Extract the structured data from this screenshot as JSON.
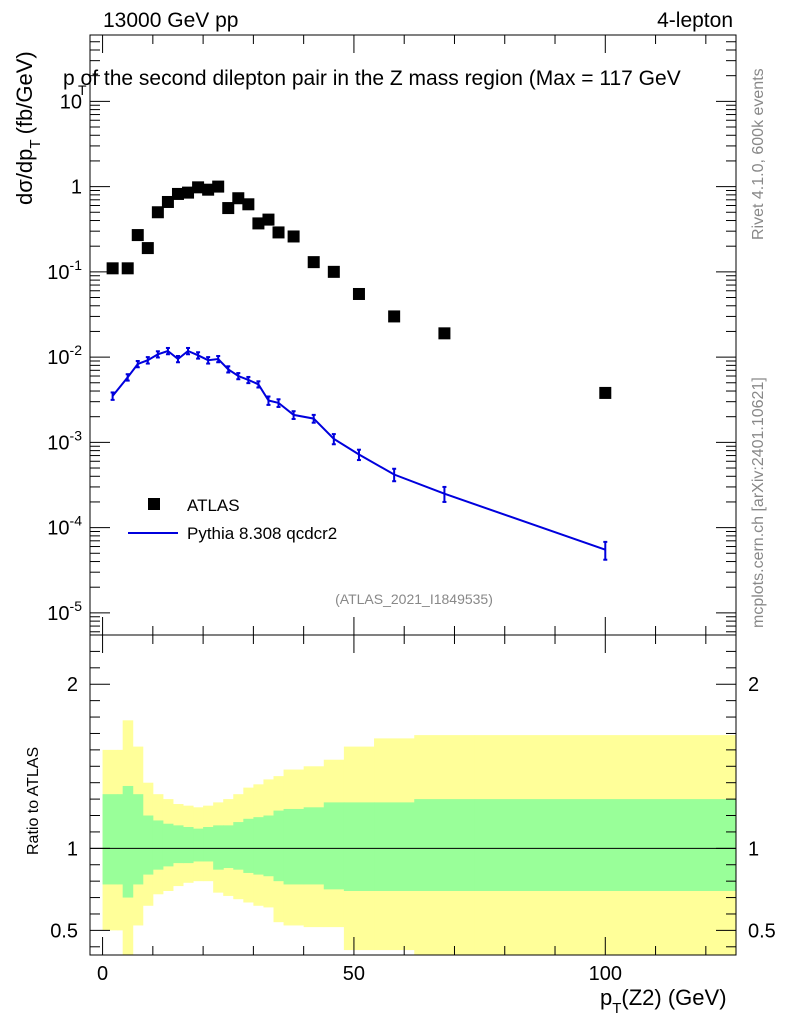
{
  "header": {
    "left": "13000 GeV pp",
    "right": "4-lepton",
    "title": "p  of the second dilepton pair in the Z mass region (Max = 117 GeV",
    "title_sub": "T"
  },
  "side_labels": {
    "rivet": "Rivet 4.1.0,  600k events",
    "mcplots": "mcplots.cern.ch [arXiv:2401.10621]"
  },
  "axes": {
    "ylabel_main": "dσ/dp",
    "ylabel_main_sub": "T",
    "ylabel_main_unit": "(fb/GeV)",
    "ylabel_ratio": "Ratio to ATLAS",
    "xlabel": "p",
    "xlabel_sub": "T",
    "xlabel_rest": "(Z2) (GeV)"
  },
  "ticks": {
    "x": [
      "0",
      "50",
      "100"
    ],
    "y_main": [
      {
        "base": "10",
        "exp": "-5"
      },
      {
        "base": "10",
        "exp": "-4"
      },
      {
        "base": "10",
        "exp": "-3"
      },
      {
        "base": "10",
        "exp": "-2"
      },
      {
        "base": "10",
        "exp": "-1"
      },
      {
        "base": "1",
        "exp": ""
      },
      {
        "base": "10",
        "exp": ""
      }
    ],
    "y_ratio": [
      "0.5",
      "1",
      "2"
    ]
  },
  "legend": {
    "data_label": "ATLAS",
    "mc_label": "Pythia 8.308 qcdcr2"
  },
  "watermark": "(ATLAS_2021_I1849535)",
  "colors": {
    "mc_line": "#0000dd",
    "band_inner": "#99ff99",
    "band_outer": "#ffff99",
    "data_marker": "#000000"
  },
  "chart_data": {
    "type": "scatter",
    "xlim": [
      -2.5,
      126
    ],
    "ylim_main": [
      5.5e-06,
      60
    ],
    "ylim_ratio": [
      0.35,
      2.3
    ],
    "x_scale": "linear",
    "y_scale": "log",
    "atlas": {
      "name": "ATLAS",
      "x": [
        2,
        5,
        7,
        9,
        11,
        13,
        15,
        17,
        19,
        21,
        23,
        25,
        27,
        29,
        31,
        33,
        35,
        38,
        42,
        46,
        51,
        58,
        68,
        100
      ],
      "y": [
        0.11,
        0.11,
        0.27,
        0.19,
        0.5,
        0.66,
        0.82,
        0.85,
        0.98,
        0.92,
        1.0,
        0.56,
        0.73,
        0.62,
        0.37,
        0.41,
        0.29,
        0.26,
        0.13,
        0.1,
        0.055,
        0.03,
        0.019,
        0.0038
      ]
    },
    "pythia": {
      "name": "Pythia 8.308 qcdcr2",
      "x": [
        2,
        5,
        7,
        9,
        11,
        13,
        15,
        17,
        19,
        21,
        23,
        25,
        27,
        29,
        31,
        33,
        35,
        38,
        42,
        46,
        51,
        58,
        68,
        100
      ],
      "y": [
        0.0035,
        0.0058,
        0.0083,
        0.0092,
        0.0108,
        0.0118,
        0.0095,
        0.0118,
        0.0105,
        0.0092,
        0.0095,
        0.0072,
        0.006,
        0.0054,
        0.0048,
        0.0031,
        0.0029,
        0.0021,
        0.0019,
        0.0011,
        0.00072,
        0.00042,
        0.00025,
        5.5e-05
      ],
      "err": [
        0.00035,
        0.0005,
        0.0007,
        0.0008,
        0.0009,
        0.001,
        0.0008,
        0.001,
        0.0009,
        0.0008,
        0.0008,
        0.0006,
        0.0005,
        0.00045,
        0.0004,
        0.00035,
        0.0003,
        0.00022,
        0.0002,
        0.00015,
        0.0001,
        7e-05,
        5e-05,
        1.3e-05
      ]
    },
    "ratio_band": {
      "edges": [
        0,
        3,
        4,
        6,
        8,
        10,
        12,
        14,
        16,
        18,
        20,
        22,
        24,
        26,
        28,
        30,
        32,
        34,
        36,
        40,
        44,
        48,
        54,
        62,
        74,
        126
      ],
      "inner_lo": [
        0.78,
        0.78,
        0.7,
        0.78,
        0.84,
        0.87,
        0.89,
        0.91,
        0.91,
        0.92,
        0.92,
        0.87,
        0.88,
        0.87,
        0.85,
        0.84,
        0.83,
        0.8,
        0.78,
        0.78,
        0.75,
        0.74,
        0.74,
        0.74,
        0.74
      ],
      "inner_hi": [
        1.33,
        1.33,
        1.38,
        1.33,
        1.2,
        1.17,
        1.15,
        1.14,
        1.13,
        1.12,
        1.13,
        1.14,
        1.14,
        1.16,
        1.18,
        1.19,
        1.2,
        1.23,
        1.24,
        1.25,
        1.28,
        1.28,
        1.28,
        1.3,
        1.3
      ],
      "outer_lo": [
        0.5,
        0.5,
        0.35,
        0.53,
        0.65,
        0.72,
        0.74,
        0.77,
        0.79,
        0.8,
        0.8,
        0.73,
        0.71,
        0.69,
        0.67,
        0.65,
        0.64,
        0.55,
        0.53,
        0.52,
        0.52,
        0.38,
        0.38,
        0.35,
        0.35
      ],
      "outer_hi": [
        1.6,
        1.6,
        1.78,
        1.62,
        1.4,
        1.33,
        1.3,
        1.27,
        1.26,
        1.25,
        1.26,
        1.28,
        1.3,
        1.33,
        1.37,
        1.39,
        1.42,
        1.44,
        1.48,
        1.5,
        1.54,
        1.62,
        1.67,
        1.69,
        1.69
      ]
    },
    "ratio_reference": 1
  }
}
